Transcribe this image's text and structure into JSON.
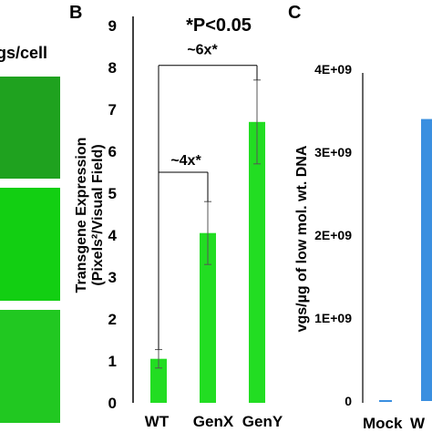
{
  "panel_a": {
    "header": "gs/cell",
    "image_colors": [
      "#1fa21f",
      "#12cf12",
      "#21c821"
    ]
  },
  "chart_data": [
    {
      "panel": "B",
      "type": "bar",
      "title": "",
      "xlabel": "",
      "ylabel_line1": "Transgene Expression",
      "ylabel_line2": "(Pixels²/Visual Field)",
      "categories": [
        "WT",
        "GenX",
        "GenY"
      ],
      "values": [
        1.05,
        4.05,
        6.7
      ],
      "errors": [
        0.22,
        0.75,
        1.0
      ],
      "ylim": [
        0,
        9
      ],
      "yticks": [
        "0",
        "1",
        "2",
        "3",
        "4",
        "5",
        "6",
        "7",
        "8",
        "9"
      ],
      "bar_color": "#22dd22",
      "grid": false,
      "annotations": {
        "significance": "*P<0.05",
        "fold_genx": "~4x*",
        "fold_geny": "~6x*"
      }
    },
    {
      "panel": "C",
      "type": "bar",
      "title": "",
      "xlabel": "",
      "ylabel": "vgs/µg of low mol. wt. DNA",
      "categories": [
        "Mock",
        "W"
      ],
      "values": [
        0,
        3400000000
      ],
      "ylim": [
        0,
        4000000000
      ],
      "yticks": [
        "0",
        "1E+09",
        "2E+09",
        "3E+09",
        "4E+09"
      ],
      "bar_color": "#3a8fe0",
      "grid": false
    }
  ]
}
